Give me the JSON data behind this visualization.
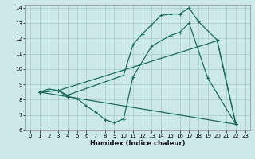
{
  "xlabel": "Humidex (Indice chaleur)",
  "bg_color": "#cce8e8",
  "grid_color": "#aacfcf",
  "line_color": "#1a6b5a",
  "xlim": [
    -0.5,
    23.5
  ],
  "ylim": [
    6,
    14.2
  ],
  "xticks": [
    0,
    1,
    2,
    3,
    4,
    5,
    6,
    7,
    8,
    9,
    10,
    11,
    12,
    13,
    14,
    15,
    16,
    17,
    18,
    19,
    20,
    21,
    22,
    23
  ],
  "yticks": [
    6,
    7,
    8,
    9,
    10,
    11,
    12,
    13,
    14
  ],
  "lines": [
    {
      "x": [
        1,
        2,
        3,
        4,
        5,
        6,
        7,
        8,
        9,
        10,
        11,
        13,
        15,
        16,
        17,
        19,
        22
      ],
      "y": [
        8.5,
        8.7,
        8.6,
        8.2,
        8.1,
        7.6,
        7.2,
        6.7,
        6.5,
        6.75,
        9.5,
        11.5,
        12.2,
        12.4,
        13.0,
        9.4,
        6.4
      ]
    },
    {
      "x": [
        1,
        3,
        4,
        10,
        11,
        12,
        13,
        14,
        15,
        16,
        17,
        18,
        20,
        22
      ],
      "y": [
        8.5,
        8.6,
        8.3,
        9.6,
        11.6,
        12.3,
        12.9,
        13.5,
        13.6,
        13.6,
        14.0,
        13.1,
        11.9,
        6.4
      ]
    },
    {
      "x": [
        1,
        3,
        20,
        22
      ],
      "y": [
        8.5,
        8.6,
        11.85,
        6.4
      ]
    },
    {
      "x": [
        1,
        22
      ],
      "y": [
        8.5,
        6.4
      ]
    }
  ]
}
